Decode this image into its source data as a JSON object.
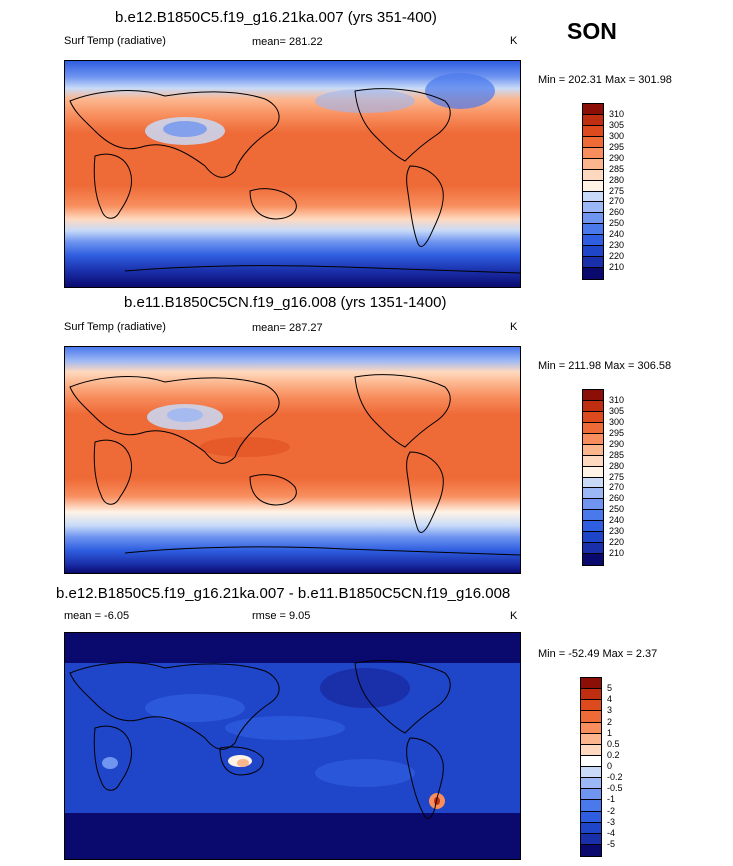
{
  "season": "SON",
  "colors": {
    "temp": [
      "#0a0a6e",
      "#1a2faa",
      "#1f45c8",
      "#2f5ee0",
      "#4a79ec",
      "#6f95f0",
      "#9bb7f5",
      "#c8daf8",
      "#fff3e6",
      "#ffd9bf",
      "#fcb68e",
      "#f88e5e",
      "#ee6a37",
      "#dd4a1d",
      "#bf2e10",
      "#8b0f06"
    ],
    "diff": [
      "#0a0a6e",
      "#1a2faa",
      "#1f45c8",
      "#2f5ee0",
      "#4a79ec",
      "#6f95f0",
      "#9bb7f5",
      "#c8daf8",
      "#ffffff",
      "#ffd9bf",
      "#fcb68e",
      "#f88e5e",
      "#ee6a37",
      "#dd4a1d",
      "#bf2e10",
      "#8b0f06"
    ]
  },
  "panels": [
    {
      "title": "b.e12.B1850C5.f19_g16.21ka.007 (yrs 351-400)",
      "left_label": "Surf Temp (radiative)",
      "mean_label": "mean= 281.22",
      "units": "K",
      "minmax": "Min = 202.31 Max = 301.98",
      "colorbar_labels": [
        "310",
        "305",
        "300",
        "295",
        "290",
        "285",
        "280",
        "275",
        "270",
        "260",
        "250",
        "240",
        "230",
        "220",
        "210"
      ]
    },
    {
      "title": "b.e11.B1850C5CN.f19_g16.008 (yrs 1351-1400)",
      "left_label": "Surf Temp (radiative)",
      "mean_label": "mean= 287.27",
      "units": "K",
      "minmax": "Min = 211.98 Max = 306.58",
      "colorbar_labels": [
        "310",
        "305",
        "300",
        "295",
        "290",
        "285",
        "280",
        "275",
        "270",
        "260",
        "250",
        "240",
        "230",
        "220",
        "210"
      ]
    },
    {
      "title": "b.e12.B1850C5.f19_g16.21ka.007 - b.e11.B1850C5CN.f19_g16.008",
      "left_label": "mean =  -6.05",
      "mean_label": "rmse =   9.05",
      "units": "K",
      "minmax": "Min = -52.49 Max =   2.37",
      "colorbar_labels": [
        "5",
        "4",
        "3",
        "2",
        "1",
        "0.5",
        "0.2",
        "0",
        "-0.2",
        "-0.5",
        "-1",
        "-2",
        "-3",
        "-4",
        "-5"
      ]
    }
  ]
}
